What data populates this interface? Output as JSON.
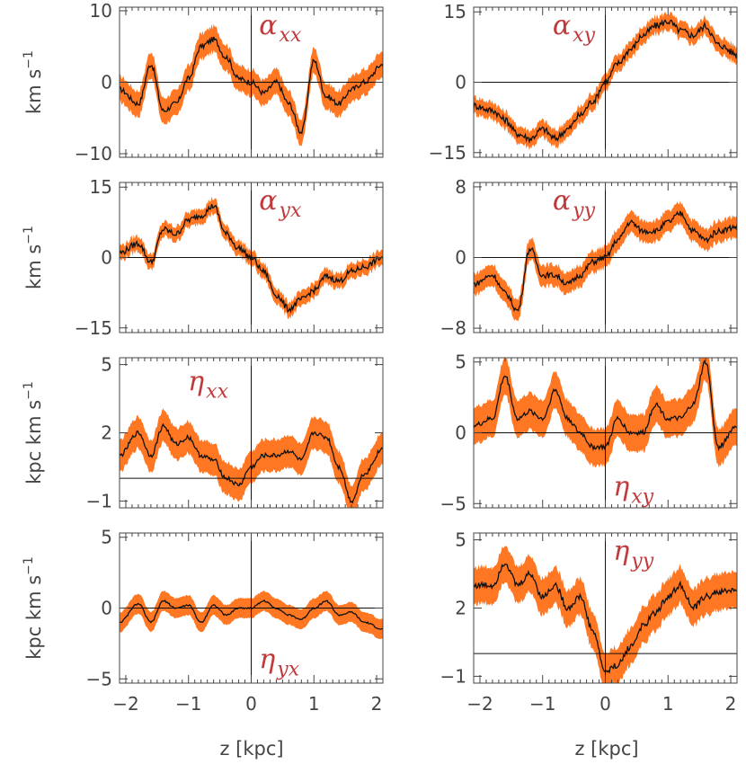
{
  "chart_data": [
    {
      "type": "line",
      "panel": "alpha_xx",
      "label_symbol": "α",
      "label_sub": "xx",
      "ylabel": "km s",
      "ylabel_sup": "−1",
      "yticks": [
        -10,
        0,
        10
      ],
      "ylim": [
        -10.5,
        10.5
      ],
      "xlim": [
        -2.1,
        2.1
      ],
      "x": [
        -2.1,
        -1.8,
        -1.6,
        -1.4,
        -1.2,
        -1.0,
        -0.8,
        -0.6,
        -0.4,
        -0.2,
        0.0,
        0.2,
        0.4,
        0.6,
        0.8,
        1.0,
        1.2,
        1.4,
        1.6,
        1.8,
        2.1
      ],
      "y": [
        -1,
        -3,
        2.5,
        -4,
        -3,
        0.5,
        5,
        6,
        3.5,
        0.5,
        0,
        -1.5,
        0,
        -3,
        -7,
        3,
        -2,
        -3,
        -1,
        0,
        2.5
      ],
      "band": 1.8
    },
    {
      "type": "line",
      "panel": "alpha_xy",
      "label_symbol": "α",
      "label_sub": "xy",
      "ylabel": "",
      "yticks": [
        -15,
        0,
        15
      ],
      "ylim": [
        -16,
        16
      ],
      "xlim": [
        -2.1,
        2.1
      ],
      "x": [
        -2.1,
        -1.8,
        -1.6,
        -1.4,
        -1.2,
        -1.0,
        -0.8,
        -0.6,
        -0.4,
        -0.2,
        0.0,
        0.2,
        0.4,
        0.6,
        0.8,
        1.0,
        1.2,
        1.4,
        1.6,
        1.8,
        2.1
      ],
      "y": [
        -5,
        -6,
        -8,
        -11,
        -12,
        -10,
        -12,
        -10,
        -7,
        -4,
        0,
        4,
        7,
        10,
        12,
        13,
        11,
        10,
        12,
        8,
        6
      ],
      "band": 1.8
    },
    {
      "type": "line",
      "panel": "alpha_yx",
      "label_symbol": "α",
      "label_sub": "yx",
      "ylabel": "km s",
      "ylabel_sup": "−1",
      "yticks": [
        -15,
        0,
        15
      ],
      "ylim": [
        -16,
        16
      ],
      "xlim": [
        -2.1,
        2.1
      ],
      "x": [
        -2.1,
        -1.8,
        -1.6,
        -1.4,
        -1.2,
        -1.0,
        -0.8,
        -0.6,
        -0.4,
        -0.2,
        0.0,
        0.2,
        0.4,
        0.6,
        0.8,
        1.0,
        1.2,
        1.4,
        1.6,
        1.8,
        2.1
      ],
      "y": [
        1,
        3,
        -1,
        6,
        5,
        8,
        9,
        11,
        5,
        2,
        0,
        -3,
        -8,
        -11,
        -9,
        -7,
        -4,
        -5,
        -3,
        -2,
        0
      ],
      "band": 1.6
    },
    {
      "type": "line",
      "panel": "alpha_yy",
      "label_symbol": "α",
      "label_sub": "yy",
      "ylabel": "",
      "yticks": [
        -8,
        0,
        8
      ],
      "ylim": [
        -8.5,
        8.5
      ],
      "xlim": [
        -2.1,
        2.1
      ],
      "x": [
        -2.1,
        -1.8,
        -1.6,
        -1.4,
        -1.2,
        -1.0,
        -0.8,
        -0.6,
        -0.4,
        -0.2,
        0.0,
        0.2,
        0.4,
        0.6,
        0.8,
        1.0,
        1.2,
        1.4,
        1.6,
        1.8,
        2.1
      ],
      "y": [
        -3,
        -2,
        -4,
        -6,
        1,
        -2,
        -2,
        -3,
        -2,
        -0.5,
        0,
        2,
        4,
        3,
        3,
        4,
        5,
        3,
        2,
        3,
        3.5
      ],
      "band": 1.2
    },
    {
      "type": "line",
      "panel": "eta_xx",
      "label_symbol": "η",
      "label_sub": "xx",
      "ylabel": "kpc km s",
      "ylabel_sup": "−1",
      "yticks": [
        -1,
        2,
        5
      ],
      "ylim": [
        -1.3,
        5.3
      ],
      "xlim": [
        -2.1,
        2.1
      ],
      "x": [
        -2.1,
        -1.8,
        -1.6,
        -1.4,
        -1.2,
        -1.0,
        -0.8,
        -0.6,
        -0.4,
        -0.2,
        0.0,
        0.2,
        0.4,
        0.6,
        0.8,
        1.0,
        1.2,
        1.4,
        1.6,
        1.8,
        2.1
      ],
      "y": [
        1,
        2,
        1,
        2.3,
        1.5,
        1.8,
        1,
        0.8,
        0,
        -0.3,
        0.5,
        1,
        1,
        1.2,
        0.8,
        2,
        1.8,
        0.5,
        -1,
        0.2,
        1.3
      ],
      "band": 0.7
    },
    {
      "type": "line",
      "panel": "eta_xy",
      "label_symbol": "η",
      "label_sub": "xy",
      "ylabel": "",
      "yticks": [
        -5,
        0,
        5
      ],
      "ylim": [
        -5.3,
        5.3
      ],
      "xlim": [
        -2.1,
        2.1
      ],
      "x": [
        -2.1,
        -1.8,
        -1.6,
        -1.4,
        -1.2,
        -1.0,
        -0.8,
        -0.6,
        -0.4,
        -0.2,
        0.0,
        0.2,
        0.4,
        0.6,
        0.8,
        1.0,
        1.2,
        1.4,
        1.6,
        1.8,
        2.1
      ],
      "y": [
        0.5,
        1,
        4,
        1,
        1.5,
        1,
        3,
        1,
        0,
        -1,
        -1,
        1,
        0,
        0,
        2,
        1,
        1,
        2,
        5,
        -1,
        0.5
      ],
      "band": 1.3
    },
    {
      "type": "line",
      "panel": "eta_yx",
      "label_symbol": "η",
      "label_sub": "yx",
      "ylabel": "kpc km s",
      "ylabel_sup": "−1",
      "yticks": [
        -5,
        0,
        5
      ],
      "ylim": [
        -5.3,
        5.3
      ],
      "xlim": [
        -2.1,
        2.1
      ],
      "x": [
        -2.1,
        -1.8,
        -1.6,
        -1.4,
        -1.2,
        -1.0,
        -0.8,
        -0.6,
        -0.4,
        -0.2,
        0.0,
        0.2,
        0.4,
        0.6,
        0.8,
        1.0,
        1.2,
        1.4,
        1.6,
        1.8,
        2.1
      ],
      "y": [
        -1,
        0.3,
        -1,
        0.5,
        0,
        0.2,
        -1,
        0.2,
        -0.5,
        0,
        0,
        0.5,
        0,
        -0.5,
        -0.8,
        0,
        0.5,
        -0.5,
        -0.3,
        -1,
        -1.5
      ],
      "band": 0.7
    },
    {
      "type": "line",
      "panel": "eta_yy",
      "label_symbol": "η",
      "label_sub": "yy",
      "ylabel": "",
      "yticks": [
        -1,
        2,
        5
      ],
      "ylim": [
        -1.3,
        5.3
      ],
      "xlim": [
        -2.1,
        2.1
      ],
      "x": [
        -2.1,
        -1.8,
        -1.6,
        -1.4,
        -1.2,
        -1.0,
        -0.8,
        -0.6,
        -0.4,
        -0.2,
        0.0,
        0.2,
        0.4,
        0.6,
        0.8,
        1.0,
        1.2,
        1.4,
        1.6,
        1.8,
        2.1
      ],
      "y": [
        3,
        3,
        4,
        3,
        3.5,
        2.5,
        3,
        2,
        2.5,
        1,
        -0.8,
        -0.5,
        0.3,
        1.2,
        1.8,
        2.5,
        3,
        2,
        2.5,
        2.7,
        2.8
      ],
      "band": 0.8
    }
  ],
  "xticks": [
    -2,
    -1,
    0,
    1,
    2
  ],
  "xlabel": "z  [kpc]",
  "colors": {
    "band": "#ff7722",
    "line": "#111111",
    "axis": "#444444",
    "label": "#c0393b"
  }
}
